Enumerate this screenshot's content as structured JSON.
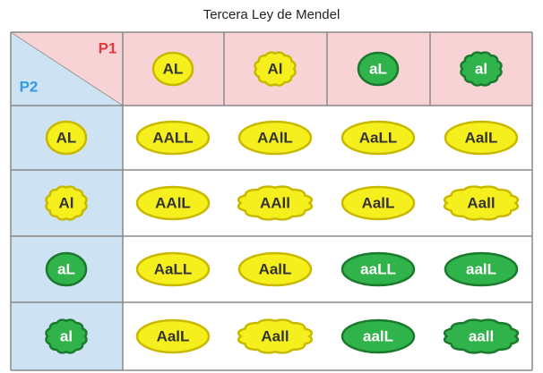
{
  "title": "Tercera Ley de Mendel",
  "corner": {
    "p1": "P1",
    "p2": "P2"
  },
  "columns": [
    "AL",
    "Al",
    "aL",
    "al"
  ],
  "rows": [
    {
      "label": "AL",
      "cells": [
        "AALL",
        "AAlL",
        "AaLL",
        "AalL"
      ]
    },
    {
      "label": "Al",
      "cells": [
        "AAlL",
        "AAll",
        "AalL",
        "Aall"
      ]
    },
    {
      "label": "aL",
      "cells": [
        "AaLL",
        "AalL",
        "aaLL",
        "aalL"
      ]
    },
    {
      "label": "al",
      "cells": [
        "AalL",
        "Aall",
        "aalL",
        "aall"
      ]
    }
  ]
}
